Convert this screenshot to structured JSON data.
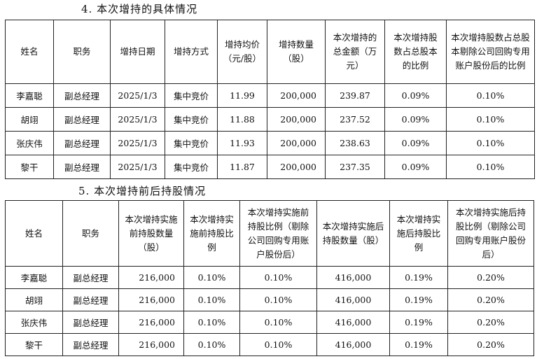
{
  "section4": {
    "title": "4.  本次增持的具体情况",
    "headers": [
      "姓名",
      "职务",
      "增持日期",
      "增持方式",
      "增持均价（元/股）",
      "增持数量（股）",
      "本次增持的总金额（万元）",
      "本次增持股数占总股本的比例",
      "本次增持股数占总股本剔除公司回购专用账户股份后的比例"
    ],
    "rows": [
      [
        "李嘉聪",
        "副总经理",
        "2025/1/3",
        "集中竞价",
        "11.99",
        "200,000",
        "239.87",
        "0.09%",
        "0.10%"
      ],
      [
        "胡翊",
        "副总经理",
        "2025/1/3",
        "集中竞价",
        "11.88",
        "200,000",
        "237.52",
        "0.09%",
        "0.10%"
      ],
      [
        "张庆伟",
        "副总经理",
        "2025/1/3",
        "集中竞价",
        "11.93",
        "200,000",
        "238.63",
        "0.09%",
        "0.10%"
      ],
      [
        "黎干",
        "副总经理",
        "2025/1/3",
        "集中竞价",
        "11.87",
        "200,000",
        "237.35",
        "0.09%",
        "0.10%"
      ]
    ]
  },
  "section5": {
    "title": "5.  本次增持前后持股情况",
    "headers": [
      "姓名",
      "职务",
      "本次增持实施前持股数量（股）",
      "本次增持实施前持股比例",
      "本次增持实施前持股比例（剔除公司回购专用账户股份后）",
      "本次增持实施后持股数量（股）",
      "本次增持实施后持股比例",
      "本次增持实施后持股比例（剔除公司回购专用账户股份后）"
    ],
    "rows": [
      [
        "李嘉聪",
        "副总经理",
        "216,000",
        "0.10%",
        "0.10%",
        "416,000",
        "0.19%",
        "0.20%"
      ],
      [
        "胡翊",
        "副总经理",
        "216,000",
        "0.10%",
        "0.10%",
        "416,000",
        "0.19%",
        "0.20%"
      ],
      [
        "张庆伟",
        "副总经理",
        "216,000",
        "0.10%",
        "0.10%",
        "416,000",
        "0.19%",
        "0.20%"
      ],
      [
        "黎干",
        "副总经理",
        "216,000",
        "0.10%",
        "0.10%",
        "416,000",
        "0.19%",
        "0.20%"
      ]
    ]
  }
}
